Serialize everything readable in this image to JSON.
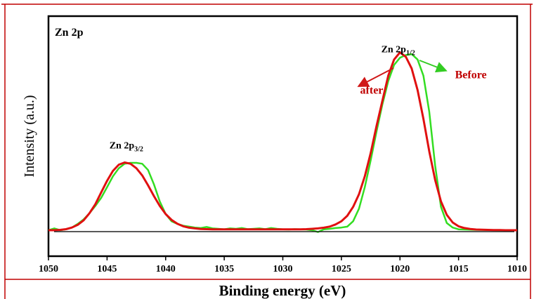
{
  "chart_data": {
    "type": "line",
    "title": "Zn 2p",
    "xlabel": "Binding energy (eV)",
    "ylabel": "Intensity (a.u.)",
    "xlim": [
      1050,
      1010
    ],
    "ylim": [
      -0.05,
      1.0
    ],
    "x_ticks": [
      "1050",
      "1045",
      "1040",
      "1035",
      "1030",
      "1025",
      "1020",
      "1015",
      "1010"
    ],
    "grid": false,
    "colors": {
      "before": "#33dd22",
      "after": "#e01010",
      "arrow_after": "#d01818",
      "arrow_before": "#33cc22",
      "frame": "#c00000",
      "baseline": "#222222"
    },
    "peak_labels": [
      {
        "text": "Zn 2p",
        "sub": "3/2",
        "x": 1044.8,
        "y": 0.455
      },
      {
        "text": "Zn 2p",
        "sub": "1/2",
        "x": 1021.6,
        "y": 0.99
      }
    ],
    "annotations": [
      {
        "text": "after",
        "x": 1023.4,
        "y": 0.76
      },
      {
        "text": "Before",
        "x": 1015.3,
        "y": 0.845
      }
    ],
    "series": [
      {
        "key": "before",
        "x": [
          1050,
          1049.5,
          1049,
          1048.5,
          1048,
          1047.5,
          1047,
          1046.5,
          1046,
          1045.5,
          1045,
          1044.5,
          1044,
          1043.5,
          1043,
          1042.5,
          1042,
          1041.5,
          1041,
          1040.5,
          1040,
          1039.5,
          1039,
          1038.5,
          1038,
          1037.5,
          1037,
          1036.5,
          1036,
          1035.5,
          1035,
          1034.5,
          1034,
          1033.5,
          1033,
          1032.5,
          1032,
          1031.5,
          1031,
          1030.5,
          1030,
          1029.5,
          1029,
          1028.5,
          1028,
          1027.5,
          1027,
          1026.5,
          1026,
          1025.5,
          1025,
          1024.5,
          1024,
          1023.5,
          1023,
          1022.5,
          1022,
          1021.5,
          1021,
          1020.5,
          1020,
          1019.5,
          1019,
          1018.5,
          1018,
          1017.5,
          1017,
          1016.5,
          1016,
          1015.5,
          1015,
          1014.5,
          1014,
          1013.5,
          1013,
          1012.5,
          1012,
          1011.5,
          1011,
          1010.5,
          1010
        ],
        "y": [
          0.0,
          0.01,
          0.0,
          0.005,
          0.015,
          0.035,
          0.06,
          0.095,
          0.135,
          0.18,
          0.24,
          0.3,
          0.345,
          0.37,
          0.375,
          0.375,
          0.37,
          0.335,
          0.255,
          0.16,
          0.09,
          0.05,
          0.035,
          0.025,
          0.02,
          0.015,
          0.012,
          0.018,
          0.01,
          0.008,
          0.005,
          0.01,
          0.008,
          0.012,
          0.006,
          0.008,
          0.01,
          0.006,
          0.012,
          0.008,
          0.005,
          0.004,
          0.006,
          0.005,
          0.004,
          0.0,
          -0.01,
          0.005,
          0.008,
          0.012,
          0.015,
          0.02,
          0.05,
          0.12,
          0.24,
          0.39,
          0.55,
          0.7,
          0.83,
          0.92,
          0.96,
          0.975,
          0.98,
          0.95,
          0.86,
          0.66,
          0.36,
          0.13,
          0.04,
          0.015,
          0.005,
          0.004,
          0.003,
          0.002,
          0.002,
          0.001,
          0.001,
          0.0,
          0.0,
          0.0,
          0.0
        ]
      },
      {
        "key": "after",
        "x": [
          1050,
          1049.5,
          1049,
          1048.5,
          1048,
          1047.5,
          1047,
          1046.5,
          1046,
          1045.5,
          1045,
          1044.5,
          1044,
          1043.5,
          1043,
          1042.5,
          1042,
          1041.5,
          1041,
          1040.5,
          1040,
          1039.5,
          1039,
          1038.5,
          1038,
          1037.5,
          1037,
          1036.5,
          1036,
          1035.5,
          1035,
          1034.5,
          1034,
          1033.5,
          1033,
          1032.5,
          1032,
          1031.5,
          1031,
          1030.5,
          1030,
          1029.5,
          1029,
          1028.5,
          1028,
          1027.5,
          1027,
          1026.5,
          1026,
          1025.5,
          1025,
          1024.5,
          1024,
          1023.5,
          1023,
          1022.5,
          1022,
          1021.5,
          1021,
          1020.5,
          1020,
          1019.5,
          1019,
          1018.5,
          1018,
          1017.5,
          1017,
          1016.5,
          1016,
          1015.5,
          1015,
          1014.5,
          1014,
          1013.5,
          1013,
          1012.5,
          1012,
          1011.5,
          1011,
          1010.5,
          1010
        ],
        "y": [
          0.0,
          0.0,
          0.002,
          0.006,
          0.015,
          0.03,
          0.055,
          0.095,
          0.145,
          0.21,
          0.275,
          0.33,
          0.365,
          0.377,
          0.37,
          0.345,
          0.305,
          0.25,
          0.19,
          0.135,
          0.09,
          0.058,
          0.036,
          0.022,
          0.014,
          0.01,
          0.007,
          0.006,
          0.005,
          0.005,
          0.005,
          0.005,
          0.005,
          0.005,
          0.005,
          0.005,
          0.005,
          0.005,
          0.005,
          0.005,
          0.005,
          0.005,
          0.005,
          0.005,
          0.006,
          0.008,
          0.01,
          0.014,
          0.02,
          0.032,
          0.05,
          0.08,
          0.13,
          0.2,
          0.3,
          0.43,
          0.58,
          0.72,
          0.86,
          0.95,
          0.99,
          0.965,
          0.9,
          0.78,
          0.62,
          0.44,
          0.28,
          0.16,
          0.085,
          0.043,
          0.022,
          0.012,
          0.007,
          0.004,
          0.003,
          0.002,
          0.001,
          0.001,
          0.0,
          0.0,
          0.0
        ]
      }
    ]
  }
}
